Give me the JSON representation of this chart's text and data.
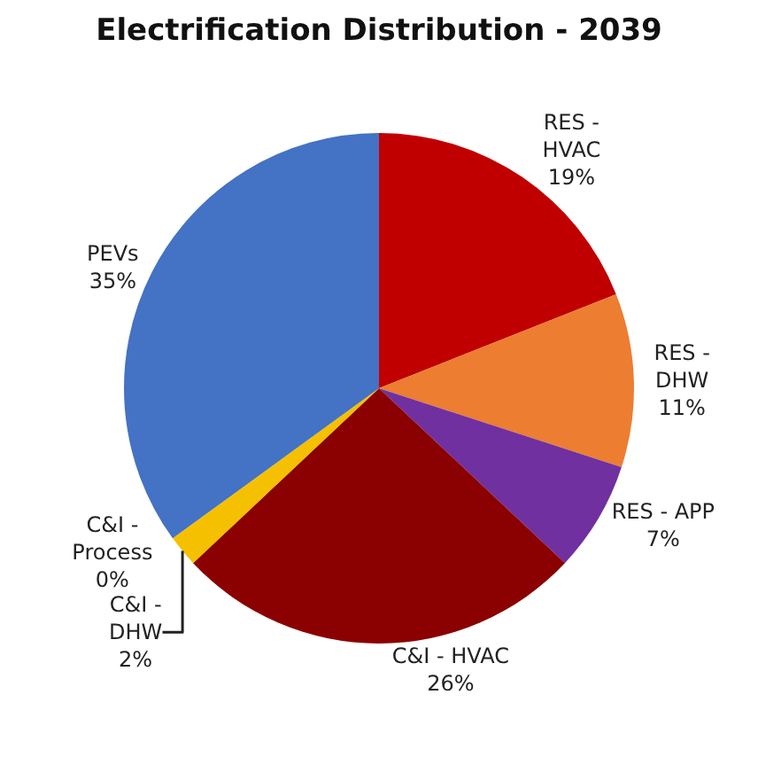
{
  "chart_data": {
    "type": "pie",
    "title": "Electrification Distribution - 2039",
    "categories": [
      "RES -\nHVAC",
      "RES -\nDHW",
      "RES - APP",
      "C&I - HVAC",
      "C&I -\nDHW",
      "C&I -\nProcess",
      "PEVs"
    ],
    "values": [
      19,
      11,
      7,
      26,
      2,
      0,
      35
    ],
    "value_labels": [
      "19%",
      "11%",
      "7%",
      "26%",
      "2%",
      "0%",
      "35%"
    ],
    "colors": [
      "#c00000",
      "#ed7d31",
      "#7030a0",
      "#8b0000",
      "#f5c000",
      "#a5a5a5",
      "#4472c4"
    ],
    "legend": false
  }
}
